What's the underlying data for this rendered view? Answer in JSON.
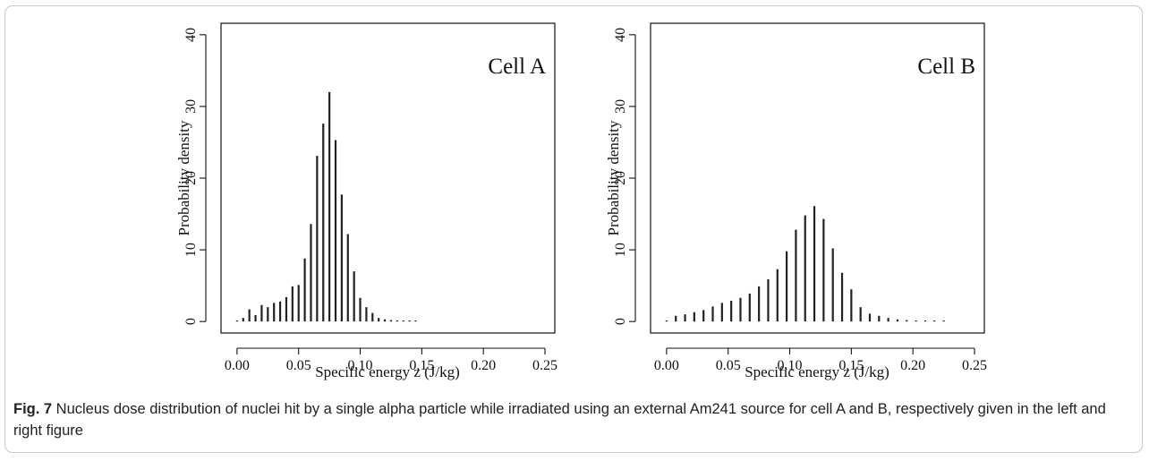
{
  "caption": {
    "label": "Fig. 7",
    "text": " Nucleus dose distribution of nuclei hit by a single alpha particle while irradiated using an external Am241 source for cell A and B, respectively given in the left and right figure"
  },
  "chart_data": [
    {
      "type": "bar",
      "style": "vertical-lines",
      "annotation": "Cell A",
      "xlabel": "Specific energy z (J/kg)",
      "ylabel": "Probability density",
      "xlim": [
        -0.013,
        0.258
      ],
      "ylim": [
        -1.6,
        41.6
      ],
      "xticks": [
        "0.00",
        "0.05",
        "0.10",
        "0.15",
        "0.20",
        "0.25"
      ],
      "yticks": [
        "0",
        "10",
        "20",
        "30",
        "40"
      ],
      "x": [
        0.0,
        0.005,
        0.01,
        0.015,
        0.02,
        0.025,
        0.03,
        0.035,
        0.04,
        0.045,
        0.05,
        0.055,
        0.06,
        0.065,
        0.07,
        0.075,
        0.08,
        0.085,
        0.09,
        0.095,
        0.1,
        0.105,
        0.11,
        0.115,
        0.12,
        0.125,
        0.13,
        0.135,
        0.14,
        0.145
      ],
      "values": [
        0.1,
        0.5,
        1.7,
        0.9,
        2.3,
        2.0,
        2.6,
        2.8,
        3.4,
        4.9,
        5.1,
        8.8,
        13.6,
        23.1,
        27.6,
        32.0,
        25.3,
        17.7,
        12.2,
        7.0,
        3.3,
        2.0,
        1.2,
        0.5,
        0.3,
        0.2,
        0.1,
        0.1,
        0.05,
        0.05
      ],
      "grid": false
    },
    {
      "type": "bar",
      "style": "vertical-lines",
      "annotation": "Cell B",
      "xlabel": "Specific energy z (J/kg)",
      "ylabel": "Probability density",
      "xlim": [
        -0.013,
        0.258
      ],
      "ylim": [
        -1.6,
        41.6
      ],
      "xticks": [
        "0.00",
        "0.05",
        "0.10",
        "0.15",
        "0.20",
        "0.25"
      ],
      "yticks": [
        "0",
        "10",
        "20",
        "30",
        "40"
      ],
      "x": [
        0.0,
        0.0075,
        0.015,
        0.0225,
        0.03,
        0.0375,
        0.045,
        0.0525,
        0.06,
        0.0675,
        0.075,
        0.0825,
        0.09,
        0.0975,
        0.105,
        0.1125,
        0.12,
        0.1275,
        0.135,
        0.1425,
        0.15,
        0.1575,
        0.165,
        0.1725,
        0.18,
        0.1875,
        0.195,
        0.2025,
        0.21,
        0.2175,
        0.225
      ],
      "values": [
        0.1,
        0.8,
        1.0,
        1.3,
        1.6,
        2.1,
        2.6,
        2.9,
        3.3,
        3.9,
        4.9,
        5.9,
        7.3,
        9.8,
        12.8,
        14.8,
        16.1,
        14.3,
        10.2,
        6.8,
        4.5,
        2.0,
        1.1,
        0.8,
        0.5,
        0.3,
        0.2,
        0.1,
        0.05,
        0.05,
        0.05
      ],
      "grid": false
    }
  ]
}
